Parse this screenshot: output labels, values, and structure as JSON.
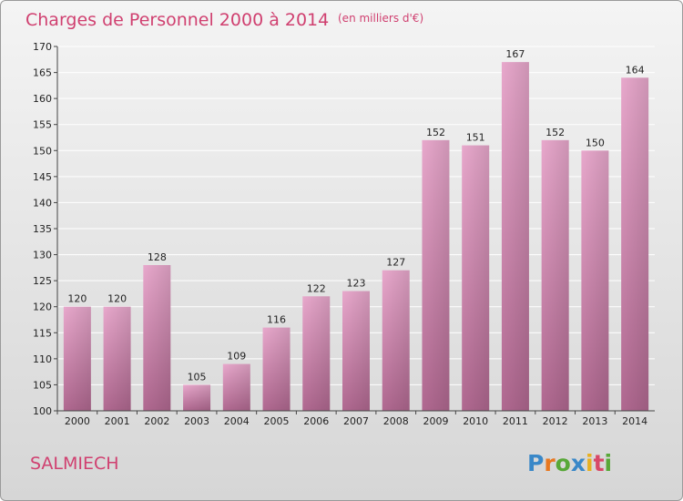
{
  "header": {
    "title": "Charges de Personnel 2000 à 2014",
    "subtitle": "(en milliers d'€)"
  },
  "footer": {
    "commune": "SALMIECH",
    "logo": "Proxiti"
  },
  "colors": {
    "title": "#d04070",
    "bar_top": "#e8a8cc",
    "bar_bottom": "#b06890",
    "grid": "#ffffff"
  },
  "chart_data": {
    "type": "bar",
    "categories": [
      "2000",
      "2001",
      "2002",
      "2003",
      "2004",
      "2005",
      "2006",
      "2007",
      "2008",
      "2009",
      "2010",
      "2011",
      "2012",
      "2013",
      "2014"
    ],
    "values": [
      120,
      120,
      128,
      105,
      109,
      116,
      122,
      123,
      127,
      152,
      151,
      167,
      152,
      150,
      164
    ],
    "title": "Charges de Personnel 2000 à 2014",
    "subtitle": "(en milliers d'€)",
    "xlabel": "",
    "ylabel": "",
    "ylim": [
      100,
      170
    ],
    "yticks": [
      100,
      105,
      110,
      115,
      120,
      125,
      130,
      135,
      140,
      145,
      150,
      155,
      160,
      165,
      170
    ],
    "grid": true,
    "data_labels": true
  }
}
